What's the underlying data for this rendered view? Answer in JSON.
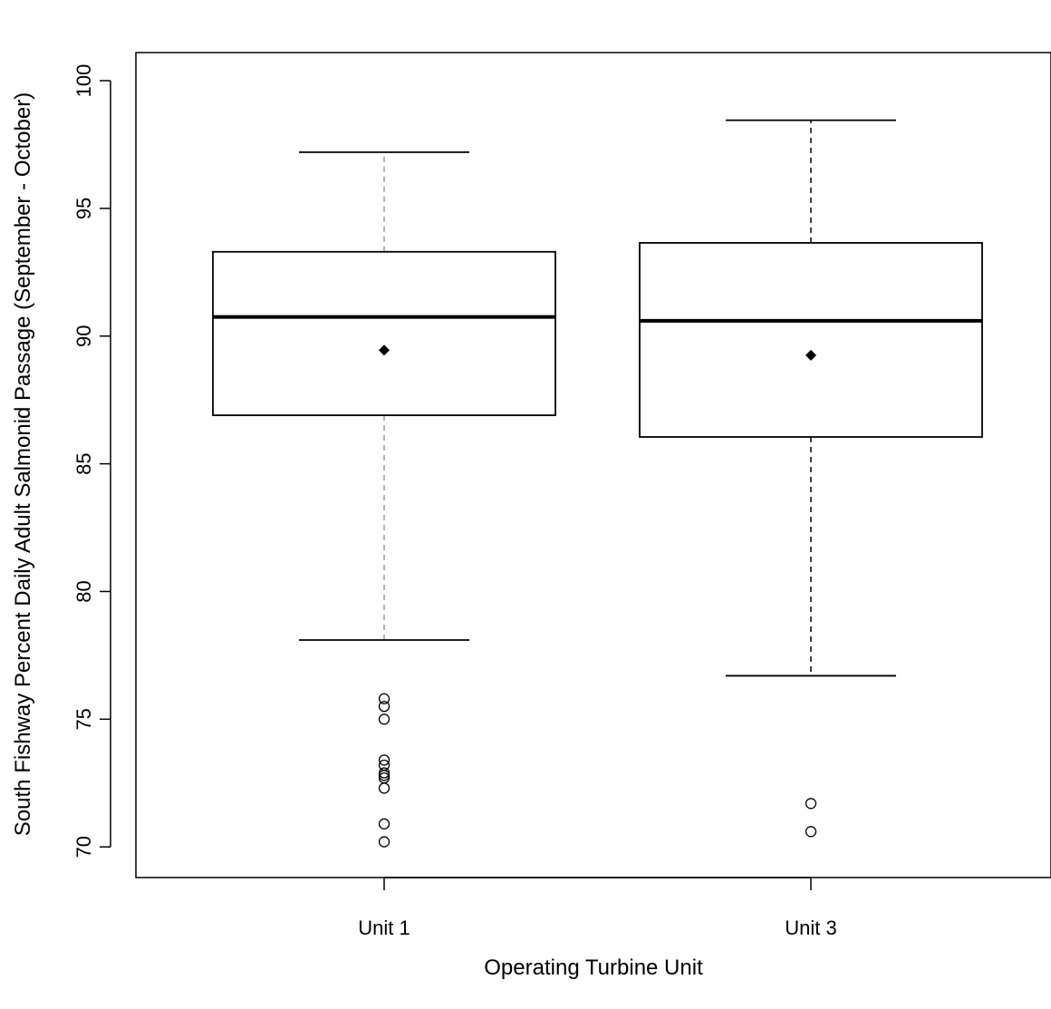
{
  "chart_data": {
    "type": "box",
    "xlabel": "Operating Turbine Unit",
    "ylabel": "South Fishway Percent Daily Adult Salmonid Passage (September - October)",
    "ylim": [
      68.8,
      101.1
    ],
    "yticks": [
      70,
      75,
      80,
      85,
      90,
      95,
      100
    ],
    "categories": [
      "Unit 1",
      "Unit 3"
    ],
    "boxes": [
      {
        "category": "Unit 1",
        "whisker_low": 78.1,
        "q1": 86.9,
        "median": 90.75,
        "q3": 93.3,
        "whisker_high": 97.2,
        "mean": 89.45,
        "outliers": [
          75.8,
          75.5,
          75.0,
          73.4,
          73.2,
          72.9,
          72.8,
          72.7,
          72.3,
          70.9,
          70.2
        ],
        "whisker_style": "dashed-gray"
      },
      {
        "category": "Unit 3",
        "whisker_low": 76.7,
        "q1": 86.05,
        "median": 90.6,
        "q3": 93.65,
        "whisker_high": 98.45,
        "mean": 89.25,
        "outliers": [
          71.7,
          70.6
        ],
        "whisker_style": "dashed-black"
      }
    ],
    "grid": false,
    "legend": "none"
  }
}
